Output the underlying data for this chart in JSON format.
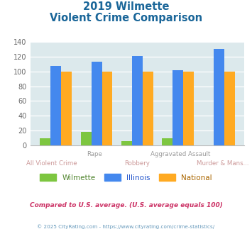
{
  "title_line1": "2019 Wilmette",
  "title_line2": "Violent Crime Comparison",
  "categories": [
    "All Violent Crime",
    "Rape",
    "Robbery",
    "Aggravated Assault",
    "Murder & Mans..."
  ],
  "wilmette": [
    9,
    18,
    5,
    9,
    0
  ],
  "illinois": [
    108,
    113,
    121,
    102,
    131
  ],
  "national": [
    100,
    100,
    100,
    100,
    100
  ],
  "wilmette_color": "#7dc640",
  "illinois_color": "#4488ee",
  "national_color": "#ffaa22",
  "bg_color": "#dce9ec",
  "title_color": "#1a6699",
  "ylim": [
    0,
    140
  ],
  "yticks": [
    0,
    20,
    40,
    60,
    80,
    100,
    120,
    140
  ],
  "footnote1": "Compared to U.S. average. (U.S. average equals 100)",
  "footnote2": "© 2025 CityRating.com - https://www.cityrating.com/crime-statistics/",
  "legend_labels": [
    "Wilmette",
    "Illinois",
    "National"
  ],
  "footnote1_color": "#cc3366",
  "footnote2_color": "#6699bb",
  "label_top_color": "#999999",
  "label_bot_color": "#cc9999",
  "legend_label_colors": [
    "#558833",
    "#2255cc",
    "#aa6600"
  ]
}
